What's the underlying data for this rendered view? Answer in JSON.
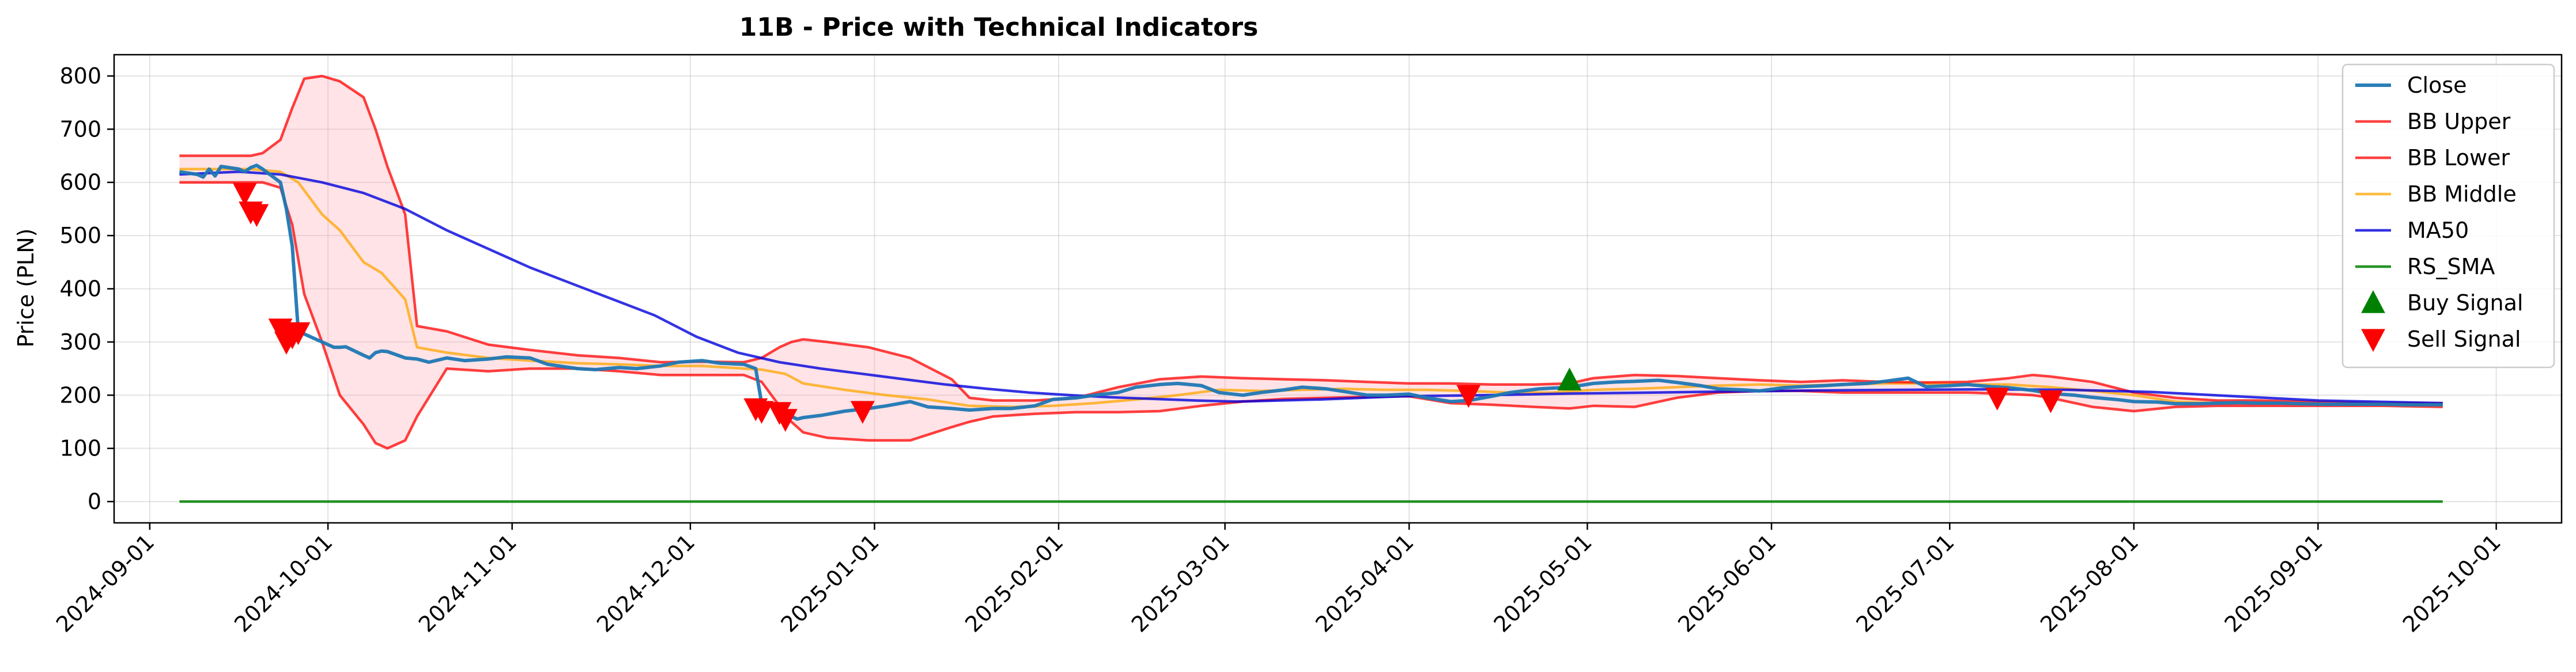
{
  "chart_data": {
    "type": "line",
    "title": "11B - Price with Technical Indicators",
    "xlabel": "",
    "ylabel": "Price (PLN)",
    "xlim": [
      "2024-08-26",
      "2025-10-12"
    ],
    "ylim": [
      -40,
      840
    ],
    "yticks": [
      0,
      100,
      200,
      300,
      400,
      500,
      600,
      700,
      800
    ],
    "xticks": [
      "2024-09-01",
      "2024-10-01",
      "2024-11-01",
      "2024-12-01",
      "2025-01-01",
      "2025-02-01",
      "2025-03-01",
      "2025-04-01",
      "2025-05-01",
      "2025-06-01",
      "2025-07-01",
      "2025-08-01",
      "2025-09-01",
      "2025-10-01"
    ],
    "grid": true,
    "legend_position": "upper right",
    "series": [
      {
        "name": "Close",
        "color": "#1f77b4",
        "x": [
          "2024-09-06",
          "2024-09-09",
          "2024-09-10",
          "2024-09-11",
          "2024-09-12",
          "2024-09-13",
          "2024-09-16",
          "2024-09-17",
          "2024-09-18",
          "2024-09-19",
          "2024-09-20",
          "2024-09-23",
          "2024-09-24",
          "2024-09-25",
          "2024-09-26",
          "2024-09-27",
          "2024-09-30",
          "2024-10-01",
          "2024-10-02",
          "2024-10-03",
          "2024-10-04",
          "2024-10-07",
          "2024-10-08",
          "2024-10-09",
          "2024-10-10",
          "2024-10-11",
          "2024-10-14",
          "2024-10-16",
          "2024-10-18",
          "2024-10-21",
          "2024-10-24",
          "2024-10-28",
          "2024-10-31",
          "2024-11-04",
          "2024-11-07",
          "2024-11-12",
          "2024-11-15",
          "2024-11-19",
          "2024-11-22",
          "2024-11-26",
          "2024-11-29",
          "2024-12-03",
          "2024-12-06",
          "2024-12-10",
          "2024-12-12",
          "2024-12-13",
          "2024-12-16",
          "2024-12-17",
          "2024-12-18",
          "2024-12-19",
          "2024-12-20",
          "2024-12-23",
          "2024-12-27",
          "2024-12-31",
          "2025-01-03",
          "2025-01-07",
          "2025-01-10",
          "2025-01-14",
          "2025-01-17",
          "2025-01-21",
          "2025-01-24",
          "2025-01-28",
          "2025-01-31",
          "2025-02-04",
          "2025-02-07",
          "2025-02-11",
          "2025-02-14",
          "2025-02-18",
          "2025-02-21",
          "2025-02-25",
          "2025-02-28",
          "2025-03-04",
          "2025-03-07",
          "2025-03-11",
          "2025-03-14",
          "2025-03-18",
          "2025-03-21",
          "2025-03-25",
          "2025-03-28",
          "2025-04-01",
          "2025-04-04",
          "2025-04-08",
          "2025-04-11",
          "2025-04-15",
          "2025-04-18",
          "2025-04-23",
          "2025-04-28",
          "2025-05-02",
          "2025-05-06",
          "2025-05-09",
          "2025-05-13",
          "2025-05-16",
          "2025-05-20",
          "2025-05-23",
          "2025-05-27",
          "2025-05-30",
          "2025-06-03",
          "2025-06-06",
          "2025-06-10",
          "2025-06-13",
          "2025-06-17",
          "2025-06-20",
          "2025-06-24",
          "2025-06-27",
          "2025-07-01",
          "2025-07-04",
          "2025-07-08",
          "2025-07-11",
          "2025-07-15",
          "2025-07-18",
          "2025-07-22",
          "2025-07-25",
          "2025-07-29",
          "2025-08-01",
          "2025-08-05",
          "2025-08-08",
          "2025-08-12",
          "2025-08-15",
          "2025-08-19",
          "2025-08-22",
          "2025-08-26",
          "2025-08-29",
          "2025-09-02",
          "2025-09-05",
          "2025-09-09",
          "2025-09-12",
          "2025-09-16",
          "2025-09-19",
          "2025-09-22"
        ],
        "values": [
          620,
          615,
          610,
          625,
          612,
          630,
          625,
          620,
          628,
          632,
          625,
          600,
          550,
          480,
          320,
          315,
          300,
          295,
          290,
          290,
          291,
          275,
          270,
          280,
          283,
          282,
          270,
          268,
          262,
          270,
          265,
          268,
          272,
          270,
          258,
          250,
          248,
          252,
          250,
          255,
          262,
          265,
          260,
          258,
          250,
          185,
          175,
          165,
          160,
          155,
          158,
          162,
          170,
          175,
          180,
          188,
          178,
          175,
          172,
          175,
          175,
          180,
          192,
          195,
          200,
          205,
          215,
          220,
          222,
          218,
          205,
          200,
          205,
          210,
          215,
          212,
          207,
          200,
          200,
          202,
          195,
          188,
          190,
          198,
          205,
          212,
          215,
          222,
          225,
          226,
          228,
          224,
          218,
          212,
          210,
          208,
          214,
          216,
          218,
          220,
          222,
          226,
          232,
          216,
          218,
          220,
          216,
          214,
          209,
          203,
          200,
          196,
          192,
          188,
          187,
          184,
          184,
          185,
          186,
          185,
          185,
          184,
          183,
          183,
          183,
          183,
          182,
          182,
          182
        ]
      },
      {
        "name": "BB Upper",
        "color": "#ff0000",
        "x": [
          "2024-09-06",
          "2024-09-18",
          "2024-09-20",
          "2024-09-23",
          "2024-09-25",
          "2024-09-27",
          "2024-09-30",
          "2024-10-03",
          "2024-10-07",
          "2024-10-09",
          "2024-10-11",
          "2024-10-14",
          "2024-10-16",
          "2024-10-21",
          "2024-10-28",
          "2024-11-04",
          "2024-11-12",
          "2024-11-19",
          "2024-11-26",
          "2024-12-03",
          "2024-12-10",
          "2024-12-13",
          "2024-12-16",
          "2024-12-18",
          "2024-12-20",
          "2024-12-24",
          "2024-12-31",
          "2025-01-07",
          "2025-01-14",
          "2025-01-17",
          "2025-01-21",
          "2025-01-28",
          "2025-02-04",
          "2025-02-11",
          "2025-02-18",
          "2025-02-25",
          "2025-03-04",
          "2025-03-11",
          "2025-03-18",
          "2025-03-25",
          "2025-04-01",
          "2025-04-08",
          "2025-04-15",
          "2025-04-22",
          "2025-04-28",
          "2025-05-02",
          "2025-05-09",
          "2025-05-16",
          "2025-05-23",
          "2025-05-30",
          "2025-06-06",
          "2025-06-13",
          "2025-06-20",
          "2025-06-27",
          "2025-07-04",
          "2025-07-11",
          "2025-07-15",
          "2025-07-18",
          "2025-07-25",
          "2025-08-01",
          "2025-08-08",
          "2025-08-15",
          "2025-08-22",
          "2025-08-29",
          "2025-09-05",
          "2025-09-12",
          "2025-09-22"
        ],
        "values": [
          650,
          650,
          655,
          680,
          740,
          795,
          800,
          790,
          760,
          700,
          630,
          540,
          330,
          320,
          295,
          285,
          275,
          270,
          262,
          263,
          262,
          270,
          290,
          300,
          305,
          300,
          290,
          270,
          230,
          195,
          190,
          190,
          195,
          215,
          230,
          235,
          232,
          230,
          228,
          225,
          222,
          222,
          220,
          220,
          222,
          232,
          238,
          236,
          232,
          228,
          225,
          228,
          225,
          224,
          225,
          232,
          238,
          235,
          225,
          205,
          195,
          190,
          190,
          188,
          186,
          185,
          185
        ]
      },
      {
        "name": "BB Lower",
        "color": "#ff0000",
        "x": [
          "2024-09-06",
          "2024-09-18",
          "2024-09-20",
          "2024-09-23",
          "2024-09-25",
          "2024-09-27",
          "2024-09-30",
          "2024-10-03",
          "2024-10-07",
          "2024-10-09",
          "2024-10-11",
          "2024-10-14",
          "2024-10-16",
          "2024-10-21",
          "2024-10-28",
          "2024-11-04",
          "2024-11-12",
          "2024-11-19",
          "2024-11-26",
          "2024-12-03",
          "2024-12-10",
          "2024-12-13",
          "2024-12-16",
          "2024-12-18",
          "2024-12-20",
          "2024-12-24",
          "2024-12-31",
          "2025-01-07",
          "2025-01-14",
          "2025-01-17",
          "2025-01-21",
          "2025-01-28",
          "2025-02-04",
          "2025-02-11",
          "2025-02-18",
          "2025-02-25",
          "2025-03-04",
          "2025-03-11",
          "2025-03-18",
          "2025-03-25",
          "2025-04-01",
          "2025-04-08",
          "2025-04-15",
          "2025-04-22",
          "2025-04-28",
          "2025-05-02",
          "2025-05-09",
          "2025-05-16",
          "2025-05-23",
          "2025-05-30",
          "2025-06-06",
          "2025-06-13",
          "2025-06-20",
          "2025-06-27",
          "2025-07-04",
          "2025-07-11",
          "2025-07-15",
          "2025-07-18",
          "2025-07-25",
          "2025-08-01",
          "2025-08-08",
          "2025-08-15",
          "2025-08-22",
          "2025-08-29",
          "2025-09-05",
          "2025-09-12",
          "2025-09-22"
        ],
        "values": [
          600,
          600,
          600,
          590,
          520,
          390,
          300,
          200,
          145,
          110,
          100,
          115,
          160,
          250,
          245,
          250,
          250,
          245,
          238,
          238,
          238,
          225,
          180,
          150,
          130,
          120,
          115,
          115,
          140,
          150,
          160,
          165,
          168,
          168,
          170,
          180,
          188,
          193,
          195,
          197,
          198,
          185,
          182,
          178,
          175,
          180,
          178,
          195,
          205,
          208,
          208,
          205,
          205,
          205,
          205,
          202,
          200,
          195,
          178,
          170,
          178,
          180,
          180,
          180,
          180,
          180,
          178
        ]
      },
      {
        "name": "BB Middle",
        "color": "#ffa500",
        "x": [
          "2024-09-06",
          "2024-09-18",
          "2024-09-23",
          "2024-09-26",
          "2024-09-30",
          "2024-10-03",
          "2024-10-07",
          "2024-10-10",
          "2024-10-14",
          "2024-10-16",
          "2024-10-21",
          "2024-10-28",
          "2024-11-04",
          "2024-11-12",
          "2024-11-19",
          "2024-11-26",
          "2024-12-03",
          "2024-12-10",
          "2024-12-13",
          "2024-12-17",
          "2024-12-20",
          "2024-12-27",
          "2025-01-03",
          "2025-01-10",
          "2025-01-17",
          "2025-01-24",
          "2025-01-31",
          "2025-02-07",
          "2025-02-14",
          "2025-02-21",
          "2025-02-28",
          "2025-03-07",
          "2025-03-14",
          "2025-03-21",
          "2025-03-28",
          "2025-04-04",
          "2025-04-11",
          "2025-04-18",
          "2025-04-25",
          "2025-05-02",
          "2025-05-09",
          "2025-05-16",
          "2025-05-23",
          "2025-05-30",
          "2025-06-06",
          "2025-06-13",
          "2025-06-20",
          "2025-06-27",
          "2025-07-04",
          "2025-07-11",
          "2025-07-18",
          "2025-07-25",
          "2025-08-01",
          "2025-08-08",
          "2025-08-15",
          "2025-08-22",
          "2025-08-29",
          "2025-09-05",
          "2025-09-12",
          "2025-09-22"
        ],
        "values": [
          625,
          625,
          620,
          600,
          540,
          510,
          450,
          430,
          380,
          290,
          280,
          270,
          265,
          260,
          258,
          255,
          255,
          250,
          248,
          240,
          222,
          210,
          200,
          192,
          180,
          178,
          180,
          185,
          192,
          200,
          210,
          208,
          210,
          212,
          210,
          210,
          208,
          205,
          205,
          210,
          212,
          215,
          218,
          220,
          218,
          220,
          222,
          222,
          220,
          220,
          215,
          208,
          200,
          188,
          185,
          185,
          185,
          183,
          182,
          182
        ]
      },
      {
        "name": "MA50",
        "color": "#0000dd",
        "x": [
          "2024-09-06",
          "2024-09-16",
          "2024-09-23",
          "2024-09-30",
          "2024-10-07",
          "2024-10-14",
          "2024-10-21",
          "2024-10-28",
          "2024-11-04",
          "2024-11-11",
          "2024-11-18",
          "2024-11-25",
          "2024-12-02",
          "2024-12-09",
          "2024-12-16",
          "2024-12-23",
          "2024-12-30",
          "2025-01-06",
          "2025-01-13",
          "2025-01-20",
          "2025-01-27",
          "2025-02-03",
          "2025-02-10",
          "2025-02-17",
          "2025-02-24",
          "2025-03-03",
          "2025-03-17",
          "2025-03-31",
          "2025-04-14",
          "2025-04-28",
          "2025-05-12",
          "2025-05-26",
          "2025-06-09",
          "2025-06-23",
          "2025-07-07",
          "2025-07-21",
          "2025-08-04",
          "2025-08-18",
          "2025-09-01",
          "2025-09-22"
        ],
        "values": [
          615,
          620,
          615,
          600,
          580,
          550,
          510,
          475,
          440,
          410,
          380,
          350,
          310,
          280,
          262,
          250,
          240,
          230,
          220,
          212,
          205,
          200,
          196,
          193,
          190,
          188,
          192,
          198,
          200,
          203,
          205,
          207,
          209,
          210,
          211,
          210,
          206,
          198,
          190,
          185
        ]
      },
      {
        "name": "RS_SMA",
        "color": "#008000",
        "x": [
          "2024-09-06",
          "2025-09-22"
        ],
        "values": [
          0,
          0
        ]
      }
    ],
    "signals": [
      {
        "name": "Buy Signal",
        "color": "#008000",
        "marker": "triangle-up",
        "points": [
          {
            "x": "2025-04-28",
            "y": 228
          }
        ]
      },
      {
        "name": "Sell Signal",
        "color": "#ff0000",
        "marker": "triangle-down",
        "points": [
          {
            "x": "2024-09-17",
            "y": 580
          },
          {
            "x": "2024-09-18",
            "y": 545
          },
          {
            "x": "2024-09-19",
            "y": 540
          },
          {
            "x": "2024-09-23",
            "y": 325
          },
          {
            "x": "2024-09-24",
            "y": 300
          },
          {
            "x": "2024-09-25",
            "y": 310
          },
          {
            "x": "2024-09-26",
            "y": 318
          },
          {
            "x": "2024-12-12",
            "y": 175
          },
          {
            "x": "2024-12-13",
            "y": 170
          },
          {
            "x": "2024-12-16",
            "y": 168
          },
          {
            "x": "2024-12-17",
            "y": 155
          },
          {
            "x": "2024-12-30",
            "y": 170
          },
          {
            "x": "2025-04-11",
            "y": 200
          },
          {
            "x": "2025-07-09",
            "y": 195
          },
          {
            "x": "2025-07-18",
            "y": 190
          }
        ]
      }
    ]
  }
}
